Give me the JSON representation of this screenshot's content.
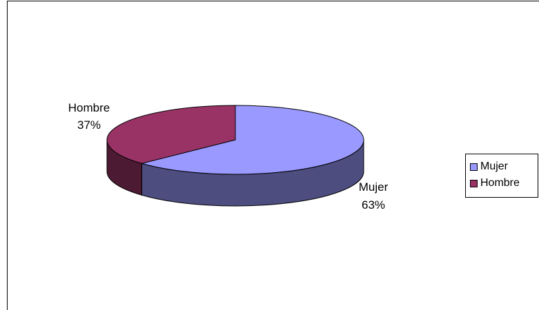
{
  "chart_data": {
    "type": "pie",
    "three_d": true,
    "slices": [
      {
        "label": "Mujer",
        "percent_label": "63%",
        "value": 63,
        "color": "#9999FF",
        "side_color": "#4D4D80"
      },
      {
        "label": "Hombre",
        "percent_label": "37%",
        "value": 37,
        "color": "#993366",
        "side_color": "#4D1A33"
      }
    ],
    "legend": {
      "placement": "right",
      "entries": [
        {
          "label": "Mujer",
          "color": "#9999FF"
        },
        {
          "label": "Hombre",
          "color": "#993366"
        }
      ]
    }
  }
}
